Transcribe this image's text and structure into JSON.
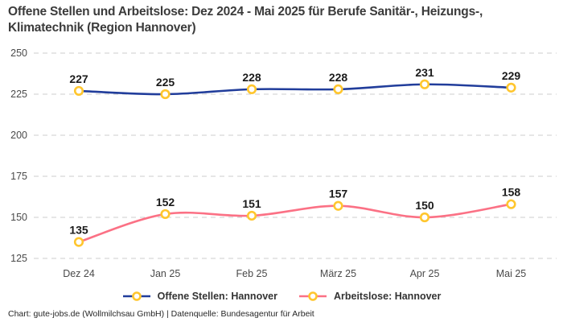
{
  "title": "Offene Stellen und Arbeitslose: Dez 2024 - Mai 2025 für Berufe Sanitär-, Heizungs-, Klimatechnik (Region Hannover)",
  "footer": "Chart: gute-jobs.de (Wollmilchsau GmbH) | Datenquelle: Bundesagentur für Arbeit",
  "colors": {
    "blue_line": "#213D9B",
    "pink_line": "#FB7185",
    "marker_ring": "#FFC62E",
    "marker_fill": "#FFFFFF",
    "grid": "#CCCCCC",
    "axis_text": "#4A4A4A",
    "data_label": "#1A1A1A"
  },
  "chart_data": {
    "type": "line",
    "title": "Offene Stellen und Arbeitslose: Dez 2024 - Mai 2025 für Berufe Sanitär-, Heizungs-, Klimatechnik (Region Hannover)",
    "categories": [
      "Dez 24",
      "Jan 25",
      "Feb 25",
      "März 25",
      "Apr 25",
      "Mai 25"
    ],
    "series": [
      {
        "name": "Offene Stellen: Hannover",
        "values": [
          227,
          225,
          228,
          228,
          231,
          229
        ],
        "color_key": "blue_line"
      },
      {
        "name": "Arbeitslose: Hannover",
        "values": [
          135,
          152,
          151,
          157,
          150,
          158
        ],
        "color_key": "pink_line"
      }
    ],
    "yticks": [
      250,
      225,
      200,
      175,
      150,
      125
    ],
    "ylim": [
      125,
      250
    ],
    "xlabel": "",
    "ylabel": "",
    "grid": "horizontal-dashed",
    "legend_position": "bottom",
    "data_labels": true
  }
}
